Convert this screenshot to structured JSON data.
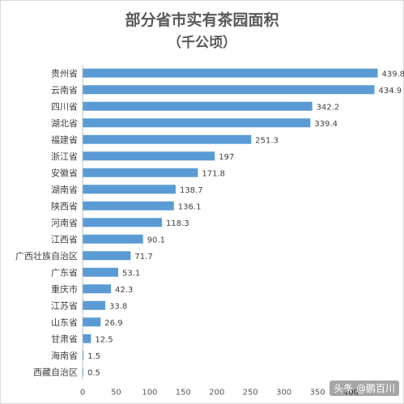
{
  "chart_data": {
    "type": "bar",
    "orientation": "horizontal",
    "title": "部分省市实有茶园面积",
    "subtitle": "（千公顷）",
    "categories": [
      "贵州省",
      "云南省",
      "四川省",
      "湖北省",
      "福建省",
      "浙江省",
      "安徽省",
      "湖南省",
      "陕西省",
      "河南省",
      "江西省",
      "广西壮族自治区",
      "广东省",
      "重庆市",
      "江苏省",
      "山东省",
      "甘肃省",
      "海南省",
      "西藏自治区"
    ],
    "values": [
      439.8,
      434.9,
      342.2,
      339.4,
      251.3,
      197,
      171.8,
      138.7,
      136.1,
      118.3,
      90.1,
      71.7,
      53.1,
      42.3,
      33.8,
      26.9,
      12.5,
      1.5,
      0.5
    ],
    "value_labels": [
      "439.8",
      "434.9",
      "342.2",
      "339.4",
      "251.3",
      "197",
      "171.8",
      "138.7",
      "136.1",
      "118.3",
      "90.1",
      "71.7",
      "53.1",
      "42.3",
      "33.8",
      "26.9",
      "12.5",
      "1.5",
      "0.5"
    ],
    "xticks": [
      "0",
      "50",
      "100",
      "150",
      "200",
      "250",
      "300",
      "350",
      "400"
    ],
    "xlim": [
      0,
      450
    ],
    "grid": false,
    "bar_color": "#5b9bd5"
  },
  "watermark": "头条 @鹏百川"
}
